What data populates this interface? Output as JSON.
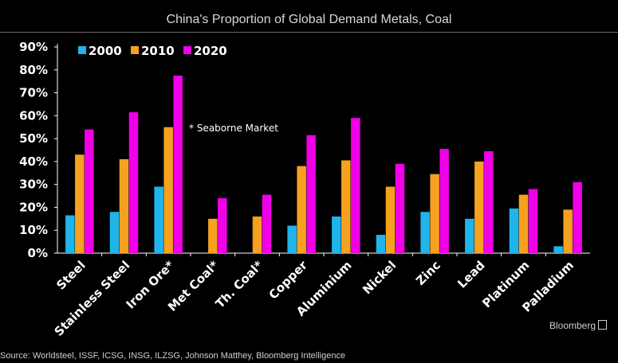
{
  "chart_data": {
    "type": "bar",
    "title": "China's Proportion of Global Demand Metals, Coal",
    "categories": [
      "Steel",
      "Stainless Steel",
      "Iron Ore*",
      "Met Coal*",
      "Th. Coal*",
      "Copper",
      "Aluminium",
      "Nickel",
      "Zinc",
      "Lead",
      "Platinum",
      "Palladium"
    ],
    "series": [
      {
        "name": "2000",
        "color": "#1fb5ea",
        "values": [
          16.5,
          18,
          29,
          null,
          null,
          12,
          16,
          8,
          18,
          15,
          19.5,
          3
        ]
      },
      {
        "name": "2010",
        "color": "#f7a120",
        "values": [
          43,
          41,
          55,
          15,
          16,
          38,
          40.5,
          29,
          34.5,
          40,
          25.5,
          19
        ]
      },
      {
        "name": "2020",
        "color": "#f000e6",
        "values": [
          54,
          61.5,
          77.5,
          24,
          25.5,
          51.5,
          59,
          39,
          45.5,
          44.5,
          28,
          31
        ]
      }
    ],
    "yticks": [
      "0%",
      "10%",
      "20%",
      "30%",
      "40%",
      "50%",
      "60%",
      "70%",
      "80%",
      "90%"
    ],
    "ylim": [
      0,
      90
    ],
    "legend_position": "top-left",
    "annotation": "* Seaborne Market",
    "grid": false
  },
  "source": "Source: Worldsteel, ISSF, ICSG, INSG, ILZSG, Johnson Matthey, Bloomberg Intelligence",
  "brand": "Bloomberg"
}
